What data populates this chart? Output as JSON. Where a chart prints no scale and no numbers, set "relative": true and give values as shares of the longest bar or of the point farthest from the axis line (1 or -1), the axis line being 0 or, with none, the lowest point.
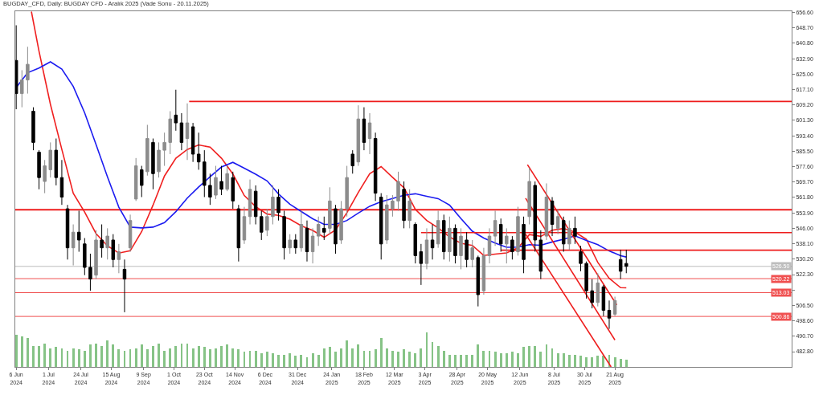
{
  "chart_data": [
    {
      "type": "candlestick",
      "title": "BUGDAY_CFD, Daily: BUGDAY CFD - Aralık 2025 (Vade Sonu - 20.11.2025)",
      "x": [
        "2024-06-06",
        "2024-06-11",
        "2024-06-14",
        "2024-06-19",
        "2024-06-24",
        "2024-06-27",
        "2024-07-02",
        "2024-07-05",
        "2024-07-10",
        "2024-07-15",
        "2024-07-18",
        "2024-07-23",
        "2024-07-26",
        "2024-07-31",
        "2024-08-05",
        "2024-08-08",
        "2024-08-13",
        "2024-08-16",
        "2024-08-21",
        "2024-08-26",
        "2024-08-29",
        "2024-09-03",
        "2024-09-06",
        "2024-09-11",
        "2024-09-16",
        "2024-09-19",
        "2024-09-24",
        "2024-09-27",
        "2024-10-02",
        "2024-10-07",
        "2024-10-10",
        "2024-10-15",
        "2024-10-18",
        "2024-10-23",
        "2024-10-28",
        "2024-10-31",
        "2024-11-05",
        "2024-11-08",
        "2024-11-13",
        "2024-11-18",
        "2024-11-21",
        "2024-11-26",
        "2024-11-29",
        "2024-12-04",
        "2024-12-09",
        "2024-12-12",
        "2024-12-17",
        "2024-12-20",
        "2024-12-25",
        "2024-12-30",
        "2025-01-02",
        "2025-01-07",
        "2025-01-10",
        "2025-01-15",
        "2025-01-20",
        "2025-01-23",
        "2025-01-28",
        "2025-01-31",
        "2025-02-05",
        "2025-02-10",
        "2025-02-13",
        "2025-02-18",
        "2025-02-21",
        "2025-02-26",
        "2025-03-03",
        "2025-03-06",
        "2025-03-11",
        "2025-03-14",
        "2025-03-19",
        "2025-03-24",
        "2025-03-27",
        "2025-04-01",
        "2025-04-04",
        "2025-04-09",
        "2025-04-14",
        "2025-04-17",
        "2025-04-22",
        "2025-04-25",
        "2025-04-30",
        "2025-05-05",
        "2025-05-08",
        "2025-05-13",
        "2025-05-16",
        "2025-05-21",
        "2025-05-26",
        "2025-05-29",
        "2025-06-03",
        "2025-06-06",
        "2025-06-11",
        "2025-06-16",
        "2025-06-19",
        "2025-06-24",
        "2025-06-27",
        "2025-07-02",
        "2025-07-07",
        "2025-07-10",
        "2025-07-15",
        "2025-07-18",
        "2025-07-23",
        "2025-07-28",
        "2025-07-31",
        "2025-08-05",
        "2025-08-08",
        "2025-08-13",
        "2025-08-18",
        "2025-08-21",
        "2025-08-26",
        "2025-08-29"
      ],
      "ohlc": [
        [
          632,
          650,
          607,
          615
        ],
        [
          615,
          627,
          608,
          622
        ],
        [
          622,
          639,
          615,
          630
        ],
        [
          606,
          608,
          586,
          590
        ],
        [
          585,
          586,
          566,
          572
        ],
        [
          570,
          581,
          564,
          578
        ],
        [
          576,
          590,
          572,
          586
        ],
        [
          586,
          592,
          568,
          572
        ],
        [
          572,
          581,
          558,
          562
        ],
        [
          556,
          558,
          530,
          536
        ],
        [
          536,
          548,
          527,
          544
        ],
        [
          544,
          555,
          534,
          540
        ],
        [
          538,
          541,
          522,
          526
        ],
        [
          526,
          533,
          514,
          520
        ],
        [
          522,
          545,
          520,
          540
        ],
        [
          540,
          548,
          531,
          536
        ],
        [
          536,
          546,
          530,
          542
        ],
        [
          540,
          543,
          526,
          530
        ],
        [
          530,
          538,
          523,
          534
        ],
        [
          525,
          530,
          503,
          520
        ],
        [
          536,
          553,
          534,
          550
        ],
        [
          561,
          582,
          560,
          578
        ],
        [
          576,
          578,
          562,
          568
        ],
        [
          575,
          599,
          573,
          592
        ],
        [
          590,
          592,
          566,
          574
        ],
        [
          575,
          590,
          572,
          586
        ],
        [
          586,
          595,
          578,
          590
        ],
        [
          590,
          606,
          584,
          602
        ],
        [
          604,
          617,
          596,
          600
        ],
        [
          600,
          605,
          586,
          590
        ],
        [
          592,
          610,
          581,
          600
        ],
        [
          598,
          600,
          580,
          584
        ],
        [
          584,
          595,
          576,
          580
        ],
        [
          580,
          586,
          562,
          568
        ],
        [
          568,
          574,
          558,
          562
        ],
        [
          563,
          578,
          561,
          572
        ],
        [
          570,
          578,
          563,
          566
        ],
        [
          566,
          578,
          565,
          574
        ],
        [
          572,
          575,
          556,
          560
        ],
        [
          556,
          558,
          529,
          536
        ],
        [
          540,
          557,
          538,
          552
        ],
        [
          552,
          571,
          548,
          566
        ],
        [
          565,
          568,
          548,
          552
        ],
        [
          552,
          555,
          540,
          544
        ],
        [
          545,
          556,
          542,
          552
        ],
        [
          552,
          568,
          548,
          562
        ],
        [
          562,
          566,
          550,
          554
        ],
        [
          552,
          555,
          530,
          536
        ],
        [
          536,
          543,
          533,
          540
        ],
        [
          540,
          543,
          533,
          536
        ],
        [
          536,
          555,
          534,
          548
        ],
        [
          546,
          550,
          529,
          534
        ],
        [
          534,
          546,
          528,
          542
        ],
        [
          542,
          552,
          537,
          548
        ],
        [
          546,
          552,
          540,
          544
        ],
        [
          546,
          567,
          543,
          560
        ],
        [
          556,
          558,
          533,
          538
        ],
        [
          540,
          560,
          538,
          556
        ],
        [
          556,
          578,
          552,
          572
        ],
        [
          584,
          586,
          574,
          578
        ],
        [
          580,
          609,
          578,
          602
        ],
        [
          602,
          608,
          586,
          590
        ],
        [
          592,
          605,
          584,
          600
        ],
        [
          592,
          595,
          560,
          564
        ],
        [
          562,
          564,
          530,
          538
        ],
        [
          540,
          563,
          538,
          558
        ],
        [
          556,
          563,
          552,
          560
        ],
        [
          560,
          575,
          555,
          570
        ],
        [
          566,
          570,
          546,
          550
        ],
        [
          550,
          566,
          546,
          560
        ],
        [
          548,
          549,
          528,
          532
        ],
        [
          534,
          538,
          517,
          528
        ],
        [
          528,
          546,
          525,
          540
        ],
        [
          540,
          548,
          530,
          536
        ],
        [
          538,
          555,
          536,
          550
        ],
        [
          550,
          553,
          530,
          534
        ],
        [
          534,
          552,
          529,
          546
        ],
        [
          546,
          548,
          528,
          532
        ],
        [
          532,
          546,
          525,
          542
        ],
        [
          540,
          544,
          526,
          530
        ],
        [
          530,
          540,
          526,
          536
        ],
        [
          531,
          532,
          506,
          512
        ],
        [
          514,
          536,
          512,
          532
        ],
        [
          532,
          546,
          528,
          542
        ],
        [
          542,
          555,
          537,
          550
        ],
        [
          548,
          551,
          534,
          538
        ],
        [
          538,
          546,
          528,
          542
        ],
        [
          540,
          542,
          530,
          534
        ],
        [
          534,
          557,
          532,
          552
        ],
        [
          548,
          552,
          523,
          530
        ],
        [
          552,
          577,
          548,
          570
        ],
        [
          568,
          570,
          534,
          540
        ],
        [
          540,
          545,
          520,
          524
        ],
        [
          542,
          569,
          540,
          562
        ],
        [
          560,
          562,
          542,
          548
        ],
        [
          546,
          556,
          543,
          552
        ],
        [
          550,
          552,
          534,
          538
        ],
        [
          538,
          550,
          535,
          546
        ],
        [
          546,
          552,
          538,
          542
        ],
        [
          534,
          537,
          524,
          528
        ],
        [
          528,
          529,
          510,
          514
        ],
        [
          514,
          520,
          505,
          508
        ],
        [
          508,
          523,
          506,
          518
        ],
        [
          516,
          517,
          501,
          504
        ],
        [
          504,
          509,
          494.5,
          500
        ],
        [
          502,
          511,
          501,
          509
        ],
        [
          530,
          535,
          520,
          524
        ],
        [
          528,
          535,
          523,
          526.5
        ]
      ],
      "colors": [
        "#000000",
        "#8c8c8c",
        "#8c8c8c",
        "#000000",
        "#000000",
        "#8c8c8c",
        "#8c8c8c",
        "#000000",
        "#000000",
        "#000000",
        "#8c8c8c",
        "#000000",
        "#000000",
        "#000000",
        "#8c8c8c",
        "#000000",
        "#8c8c8c",
        "#000000",
        "#8c8c8c",
        "#000000",
        "#8c8c8c",
        "#8c8c8c",
        "#000000",
        "#8c8c8c",
        "#000000",
        "#8c8c8c",
        "#8c8c8c",
        "#8c8c8c",
        "#000000",
        "#000000",
        "#8c8c8c",
        "#000000",
        "#000000",
        "#000000",
        "#000000",
        "#8c8c8c",
        "#000000",
        "#8c8c8c",
        "#000000",
        "#000000",
        "#8c8c8c",
        "#8c8c8c",
        "#000000",
        "#000000",
        "#8c8c8c",
        "#8c8c8c",
        "#000000",
        "#000000",
        "#8c8c8c",
        "#000000",
        "#8c8c8c",
        "#000000",
        "#8c8c8c",
        "#8c8c8c",
        "#000000",
        "#8c8c8c",
        "#000000",
        "#8c8c8c",
        "#8c8c8c",
        "#000000",
        "#8c8c8c",
        "#000000",
        "#8c8c8c",
        "#000000",
        "#000000",
        "#8c8c8c",
        "#8c8c8c",
        "#8c8c8c",
        "#000000",
        "#8c8c8c",
        "#000000",
        "#000000",
        "#8c8c8c",
        "#000000",
        "#8c8c8c",
        "#000000",
        "#8c8c8c",
        "#000000",
        "#8c8c8c",
        "#000000",
        "#8c8c8c",
        "#000000",
        "#8c8c8c",
        "#8c8c8c",
        "#8c8c8c",
        "#000000",
        "#8c8c8c",
        "#000000",
        "#8c8c8c",
        "#000000",
        "#8c8c8c",
        "#000000",
        "#000000",
        "#8c8c8c",
        "#000000",
        "#8c8c8c",
        "#000000",
        "#8c8c8c",
        "#000000",
        "#000000",
        "#000000",
        "#000000",
        "#8c8c8c",
        "#000000",
        "#000000",
        "#8c8c8c",
        "#000000",
        "#000000"
      ],
      "series": [
        {
          "type": "line",
          "color": "#f02020",
          "x": [
            "2024-06-18",
            "2024-06-24",
            "2024-07-02",
            "2024-07-10",
            "2024-07-18",
            "2024-07-26",
            "2024-08-05",
            "2024-08-13",
            "2024-08-21",
            "2024-08-29",
            "2024-09-06",
            "2024-09-16",
            "2024-09-24",
            "2024-10-02",
            "2024-10-10",
            "2024-10-18",
            "2024-10-28",
            "2024-11-05",
            "2024-11-13",
            "2024-11-21",
            "2024-11-29",
            "2024-12-09",
            "2024-12-17",
            "2024-12-25",
            "2025-01-02",
            "2025-01-10",
            "2025-01-20",
            "2025-01-28",
            "2025-02-05",
            "2025-02-13",
            "2025-02-21",
            "2025-03-03",
            "2025-03-11",
            "2025-03-19",
            "2025-03-27",
            "2025-04-04",
            "2025-04-14",
            "2025-04-22",
            "2025-04-30",
            "2025-05-08",
            "2025-05-16",
            "2025-05-26",
            "2025-06-03",
            "2025-06-11",
            "2025-06-19",
            "2025-06-27",
            "2025-07-07",
            "2025-07-15",
            "2025-07-23",
            "2025-07-31",
            "2025-08-08",
            "2025-08-18",
            "2025-08-26",
            "2025-08-29"
          ],
          "values": [
            657.0,
            636.7,
            609.5,
            586.4,
            564.0,
            554.3,
            543.3,
            537.0,
            533.3,
            534.5,
            544.3,
            557.9,
            572.8,
            581.9,
            586.4,
            588.7,
            587.6,
            581.9,
            573.8,
            562.8,
            557.1,
            553.3,
            552.6,
            550.7,
            547.3,
            544.9,
            541.4,
            545.2,
            554.0,
            564.4,
            574.0,
            577.6,
            572.1,
            566.8,
            555.7,
            550.0,
            546.2,
            541.6,
            538.3,
            537.2,
            532.1,
            532.8,
            533.4,
            536.0,
            542.8,
            541.9,
            545.0,
            545.9,
            544.1,
            540.4,
            528.5,
            520.4,
            515.6,
            515.5
          ]
        },
        {
          "type": "line",
          "color": "#1c1cf0",
          "x": [
            "2024-06-06",
            "2024-06-14",
            "2024-06-24",
            "2024-07-02",
            "2024-07-10",
            "2024-07-18",
            "2024-07-26",
            "2024-08-05",
            "2024-08-13",
            "2024-08-21",
            "2024-08-29",
            "2024-09-06",
            "2024-09-16",
            "2024-09-24",
            "2024-10-02",
            "2024-10-10",
            "2024-10-18",
            "2024-10-28",
            "2024-11-05",
            "2024-11-13",
            "2024-11-21",
            "2024-11-29",
            "2024-12-09",
            "2024-12-17",
            "2024-12-25",
            "2025-01-02",
            "2025-01-10",
            "2025-01-20",
            "2025-01-28",
            "2025-02-05",
            "2025-02-13",
            "2025-02-21",
            "2025-03-03",
            "2025-03-11",
            "2025-03-19",
            "2025-03-27",
            "2025-04-04",
            "2025-04-14",
            "2025-04-22",
            "2025-04-30",
            "2025-05-08",
            "2025-05-16",
            "2025-05-26",
            "2025-06-03",
            "2025-06-11",
            "2025-06-19",
            "2025-06-27",
            "2025-07-07",
            "2025-07-15",
            "2025-07-23",
            "2025-07-31",
            "2025-08-08",
            "2025-08-18",
            "2025-08-26",
            "2025-08-29"
          ],
          "values": [
            618.1,
            625.7,
            628.1,
            631.3,
            627.6,
            618.7,
            605.2,
            588.9,
            572.4,
            556.8,
            546.6,
            546.2,
            546.6,
            548.9,
            554.5,
            561.5,
            567.2,
            572.4,
            577.4,
            579.8,
            576.8,
            573.7,
            570.3,
            563.6,
            558.3,
            554.6,
            550.9,
            548.0,
            548.0,
            550.0,
            553.8,
            557.3,
            559.6,
            561.3,
            562.9,
            563.7,
            562.4,
            561.2,
            557.9,
            551.0,
            544.5,
            541.0,
            538.4,
            536.3,
            536.4,
            537.6,
            537.3,
            539.0,
            540.4,
            542.1,
            539.8,
            537.6,
            534.4,
            532.0,
            531.3
          ]
        },
        {
          "type": "line",
          "color": "#ee1c1c",
          "x": [
            "2024-10-11",
            "2025-12-30"
          ],
          "values": [
            611.0,
            611.0
          ]
        },
        {
          "type": "line",
          "color": "#ee1c1c",
          "x": [
            "2025-04-01",
            "2025-12-30"
          ],
          "values": [
            543.8,
            543.8
          ]
        },
        {
          "type": "line",
          "color": "#ee1c1c",
          "x": [
            "2025-05-29",
            "2025-12-30"
          ],
          "values": [
            534.8,
            534.8
          ]
        },
        {
          "type": "line",
          "color": "#ee1c1c",
          "x": [
            "2025-06-18",
            "2025-08-22"
          ],
          "values": [
            578.6,
            506.7
          ]
        },
        {
          "type": "line",
          "color": "#ee1c1c",
          "x": [
            "2025-06-17",
            "2025-08-21"
          ],
          "values": [
            561.4,
            488.8
          ]
        },
        {
          "type": "line",
          "color": "#ee1c1c",
          "x": [
            "2025-06-17",
            "2025-08-19"
          ],
          "values": [
            543.0,
            475.0
          ]
        }
      ],
      "xlim": [
        "2024-06-05T12:00",
        "2025-12-30"
      ],
      "xticks": [
        {
          "value": "2024-06-06",
          "label": "6 Jun 2024"
        },
        {
          "value": "2024-07-01",
          "label": "1 Jul 2024"
        },
        {
          "value": "2024-07-24",
          "label": "24 Jul 2024"
        },
        {
          "value": "2024-08-15",
          "label": "15 Aug 2024"
        },
        {
          "value": "2024-09-09",
          "label": "9 Sep 2024"
        },
        {
          "value": "2024-10-01",
          "label": "1 Oct 2024"
        },
        {
          "value": "2024-10-23",
          "label": "23 Oct 2024"
        },
        {
          "value": "2024-11-14",
          "label": "14 Nov 2024"
        },
        {
          "value": "2024-12-06",
          "label": "6 Dec 2024"
        },
        {
          "value": "2024-12-31",
          "label": "31 Dec 2024"
        },
        {
          "value": "2025-01-24",
          "label": "24 Jan 2025"
        },
        {
          "value": "2025-02-18",
          "label": "18 Feb 2025"
        },
        {
          "value": "2025-03-12",
          "label": "12 Mar 2025"
        },
        {
          "value": "2025-04-03",
          "label": "3 Apr 2025"
        },
        {
          "value": "2025-04-28",
          "label": "28 Apr 2025"
        },
        {
          "value": "2025-05-20",
          "label": "20 May 2025"
        },
        {
          "value": "2025-06-12",
          "label": "12 Jun 2025"
        },
        {
          "value": "2025-07-08",
          "label": "8 Jul 2025"
        },
        {
          "value": "2025-07-30",
          "label": "30 Jul 2025"
        },
        {
          "value": "2025-08-21",
          "label": "21 Aug 2025"
        }
      ],
      "ylim": [
        475.0,
        657.2
      ],
      "yticks": [
        {
          "value": 656.6,
          "label": "656.60"
        },
        {
          "value": 648.7,
          "label": "648.70"
        },
        {
          "value": 640.8,
          "label": "640.80"
        },
        {
          "value": 632.9,
          "label": "632.90"
        },
        {
          "value": 625.0,
          "label": "625.00"
        },
        {
          "value": 617.1,
          "label": "617.10"
        },
        {
          "value": 609.2,
          "label": "609.20"
        },
        {
          "value": 601.3,
          "label": "601.30"
        },
        {
          "value": 593.4,
          "label": "593.40"
        },
        {
          "value": 585.5,
          "label": "585.50"
        },
        {
          "value": 577.6,
          "label": "577.60"
        },
        {
          "value": 569.7,
          "label": "569.70"
        },
        {
          "value": 561.8,
          "label": "561.80"
        },
        {
          "value": 553.9,
          "label": "553.90"
        },
        {
          "value": 546.0,
          "label": "546.00"
        },
        {
          "value": 538.1,
          "label": "538.10"
        },
        {
          "value": 530.2,
          "label": "530.20"
        },
        {
          "value": 522.3,
          "label": "522.30"
        },
        {
          "value": 514.4,
          "label": null
        },
        {
          "value": 506.5,
          "label": "506.50"
        },
        {
          "value": 498.6,
          "label": "498.60"
        },
        {
          "value": 490.7,
          "label": "490.70"
        },
        {
          "value": 482.8,
          "label": "482.80"
        }
      ],
      "ref_lines": [
        {
          "axis": "y",
          "value": 555.5,
          "color": "#ee1c1c"
        },
        {
          "axis": "y",
          "value": 526.5,
          "label": "526.50",
          "color": "#bdbdbd"
        },
        {
          "axis": "y",
          "value": 520.22,
          "label": "520.22",
          "color": "#f05050"
        },
        {
          "axis": "y",
          "value": 513.03,
          "label": "513.03",
          "color": "#f05050"
        },
        {
          "axis": "y",
          "value": 500.86,
          "label": "500.86",
          "color": "#f05050"
        }
      ]
    },
    {
      "type": "bar",
      "relative": true,
      "color": "#86c386",
      "tick_labels": false,
      "xlim": [
        "2024-06-05T12:00",
        "2025-12-30"
      ],
      "x": [
        "2024-06-06",
        "2024-06-11",
        "2024-06-14",
        "2024-06-19",
        "2024-06-24",
        "2024-06-27",
        "2024-07-02",
        "2024-07-05",
        "2024-07-10",
        "2024-07-15",
        "2024-07-18",
        "2024-07-23",
        "2024-07-26",
        "2024-07-31",
        "2024-08-05",
        "2024-08-08",
        "2024-08-13",
        "2024-08-16",
        "2024-08-21",
        "2024-08-26",
        "2024-08-29",
        "2024-09-03",
        "2024-09-06",
        "2024-09-11",
        "2024-09-16",
        "2024-09-19",
        "2024-09-24",
        "2024-09-27",
        "2024-10-02",
        "2024-10-07",
        "2024-10-10",
        "2024-10-15",
        "2024-10-18",
        "2024-10-23",
        "2024-10-28",
        "2024-10-31",
        "2024-11-05",
        "2024-11-08",
        "2024-11-13",
        "2024-11-18",
        "2024-11-21",
        "2024-11-26",
        "2024-11-29",
        "2024-12-04",
        "2024-12-09",
        "2024-12-12",
        "2024-12-17",
        "2024-12-20",
        "2024-12-25",
        "2024-12-30",
        "2025-01-02",
        "2025-01-07",
        "2025-01-10",
        "2025-01-15",
        "2025-01-20",
        "2025-01-23",
        "2025-01-28",
        "2025-01-31",
        "2025-02-05",
        "2025-02-10",
        "2025-02-13",
        "2025-02-18",
        "2025-02-21",
        "2025-02-26",
        "2025-03-03",
        "2025-03-06",
        "2025-03-11",
        "2025-03-14",
        "2025-03-19",
        "2025-03-24",
        "2025-03-27",
        "2025-04-01",
        "2025-04-04",
        "2025-04-09",
        "2025-04-14",
        "2025-04-17",
        "2025-04-22",
        "2025-04-25",
        "2025-04-30",
        "2025-05-05",
        "2025-05-08",
        "2025-05-13",
        "2025-05-16",
        "2025-05-21",
        "2025-05-26",
        "2025-05-29",
        "2025-06-03",
        "2025-06-06",
        "2025-06-11",
        "2025-06-16",
        "2025-06-19",
        "2025-06-24",
        "2025-06-27",
        "2025-07-02",
        "2025-07-07",
        "2025-07-10",
        "2025-07-15",
        "2025-07-18",
        "2025-07-23",
        "2025-07-28",
        "2025-07-31",
        "2025-08-05",
        "2025-08-08",
        "2025-08-13",
        "2025-08-18",
        "2025-08-21",
        "2025-08-26",
        "2025-08-29"
      ],
      "values": [
        0.93,
        0.89,
        0.83,
        0.61,
        0.61,
        0.67,
        0.54,
        0.57,
        0.54,
        0.46,
        0.54,
        0.5,
        0.46,
        0.65,
        0.67,
        0.61,
        0.76,
        0.65,
        0.5,
        0.46,
        0.5,
        0.54,
        0.65,
        0.5,
        0.61,
        0.67,
        0.46,
        0.54,
        0.61,
        0.67,
        0.67,
        0.54,
        0.61,
        0.57,
        0.5,
        0.54,
        0.61,
        0.65,
        0.54,
        0.5,
        0.43,
        0.46,
        0.46,
        0.39,
        0.43,
        0.39,
        0.35,
        0.35,
        0.39,
        0.33,
        0.35,
        0.28,
        0.39,
        0.35,
        0.54,
        0.57,
        0.43,
        0.54,
        0.76,
        0.54,
        0.65,
        0.46,
        0.46,
        0.5,
        0.83,
        0.54,
        0.46,
        0.43,
        0.5,
        0.43,
        0.39,
        0.54,
        1,
        0.72,
        0.61,
        0.46,
        0.35,
        0.35,
        0.35,
        0.35,
        0.35,
        0.65,
        0.46,
        0.46,
        0.43,
        0.39,
        0.39,
        0.43,
        0.39,
        0.57,
        0.61,
        0.61,
        0.43,
        0.65,
        0.54,
        0.39,
        0.39,
        0.35,
        0.35,
        0.33,
        0.28,
        0.28,
        0.33,
        0.33,
        0.35,
        0.28,
        0.24,
        0.22
      ]
    }
  ]
}
